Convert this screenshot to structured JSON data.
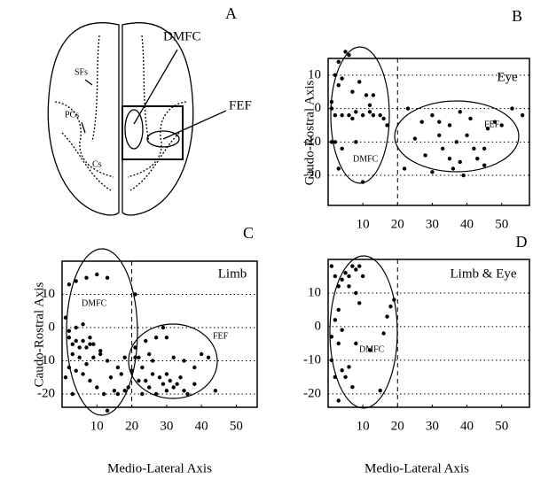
{
  "diagram": {
    "panel": "A",
    "labels": [
      "DMFC",
      "FEF",
      "SFs",
      "PCs",
      "Cs"
    ]
  },
  "chart_data": [
    {
      "type": "scatter",
      "panel": "B",
      "title": "Eye",
      "ylabel": "Caudo-Rostral Axis",
      "annotations": [
        "DMFC",
        "FEF"
      ],
      "color": "#000000",
      "xlim": [
        0,
        58
      ],
      "ylim": [
        -29,
        15
      ],
      "xticks": [
        10,
        20,
        30,
        40,
        50
      ],
      "yticks": [
        -20,
        -10,
        0,
        10
      ],
      "grid": "y",
      "vline": 20,
      "x": [
        3,
        5,
        6,
        2,
        4,
        3,
        7,
        9,
        1,
        1,
        2,
        4,
        6,
        7,
        2,
        4,
        3,
        8,
        10,
        12,
        13,
        11,
        13,
        12,
        15,
        16,
        17,
        8,
        10,
        1,
        23,
        27,
        30,
        32,
        25,
        22,
        28,
        30,
        33,
        35,
        36,
        38,
        39,
        37,
        40,
        41,
        42,
        43,
        45,
        46,
        48,
        50,
        53,
        56,
        38,
        35,
        45,
        32
      ],
      "values": [
        14,
        17,
        16,
        10,
        9,
        7,
        5,
        8,
        2,
        0,
        -2,
        -2,
        -2,
        -3,
        -10,
        -12,
        -18,
        -10,
        -22,
        -1,
        -2,
        4,
        4,
        1,
        -2,
        -3,
        -5,
        -1,
        -2,
        -10,
        0,
        -4,
        -2,
        -8,
        -9,
        -18,
        -14,
        -19,
        -12,
        -15,
        -18,
        -16,
        -20,
        -10,
        -8,
        -3,
        -12,
        -15,
        -12,
        -6,
        -4,
        -5,
        0,
        -2,
        -1,
        -5,
        -17,
        -4
      ]
    },
    {
      "type": "scatter",
      "panel": "C",
      "title": "Limb",
      "ylabel": "Caudo-Rostral Axis",
      "xlabel": "Medio-Lateral Axis",
      "annotations": [
        "DMFC",
        "FEF"
      ],
      "color": "#000000",
      "xlim": [
        0,
        56
      ],
      "ylim": [
        -24,
        20
      ],
      "xticks": [
        10,
        20,
        30,
        40,
        50
      ],
      "yticks": [
        -20,
        -10,
        0,
        10
      ],
      "grid": "y",
      "vline": 20,
      "x": [
        2,
        4,
        7,
        10,
        13,
        21,
        1,
        2,
        3,
        4,
        5,
        6,
        7,
        8,
        3,
        5,
        7,
        9,
        11,
        2,
        4,
        6,
        8,
        10,
        12,
        14,
        15,
        16,
        18,
        13,
        3,
        1,
        19,
        17,
        20,
        21,
        9,
        11,
        6,
        4,
        2,
        8,
        13,
        16,
        18,
        21,
        22,
        23,
        24,
        25,
        26,
        27,
        28,
        29,
        30,
        30,
        31,
        32,
        33,
        34,
        35,
        36,
        27,
        25,
        23,
        29,
        30,
        32,
        35,
        38,
        40,
        42,
        44,
        38,
        26,
        24,
        22
      ],
      "values": [
        13,
        14,
        15,
        16,
        15,
        10,
        3,
        -3,
        -5,
        -4,
        -6,
        -4,
        -6,
        -5,
        -8,
        -9,
        -11,
        -9,
        -8,
        -12,
        -13,
        -14,
        -16,
        -18,
        -20,
        -15,
        -19,
        -20,
        -19,
        -25,
        -20,
        -15,
        -18,
        -14,
        -13,
        -9,
        -5,
        -7,
        1,
        0,
        -1,
        -3,
        -10,
        -12,
        -9,
        -6,
        -9,
        -12,
        -4,
        -8,
        -10,
        -3,
        -15,
        -17,
        -14,
        -19,
        -16,
        -18,
        -17,
        -15,
        -19,
        -20,
        -20,
        -18,
        -20,
        0,
        -3,
        -9,
        -10,
        -12,
        -8,
        -9,
        -19,
        -17,
        -14,
        -16,
        -16
      ]
    },
    {
      "type": "scatter",
      "panel": "D",
      "title": "Limb & Eye",
      "xlabel": "Medio-Lateral Axis",
      "annotations": [
        "DMFC"
      ],
      "color": "#000000",
      "xlim": [
        0,
        58
      ],
      "ylim": [
        -24,
        20
      ],
      "xticks": [
        10,
        20,
        30,
        40,
        50
      ],
      "yticks": [
        -20,
        -10,
        0,
        10
      ],
      "grid": "y",
      "vline": 20,
      "x": [
        1,
        2,
        3,
        4,
        5,
        6,
        7,
        8,
        9,
        10,
        6,
        8,
        9,
        1,
        2,
        3,
        4,
        5,
        6,
        7,
        8,
        3,
        2,
        4,
        15,
        17,
        18,
        19,
        16,
        12,
        1,
        3
      ],
      "values": [
        18,
        15,
        12,
        14,
        16,
        15,
        18,
        17,
        18,
        15,
        12,
        10,
        7,
        -10,
        -15,
        -22,
        -13,
        -15,
        -12,
        -18,
        -5,
        5,
        2,
        -1,
        -19,
        3,
        6,
        8,
        -2,
        -7,
        -3,
        -5
      ]
    }
  ]
}
